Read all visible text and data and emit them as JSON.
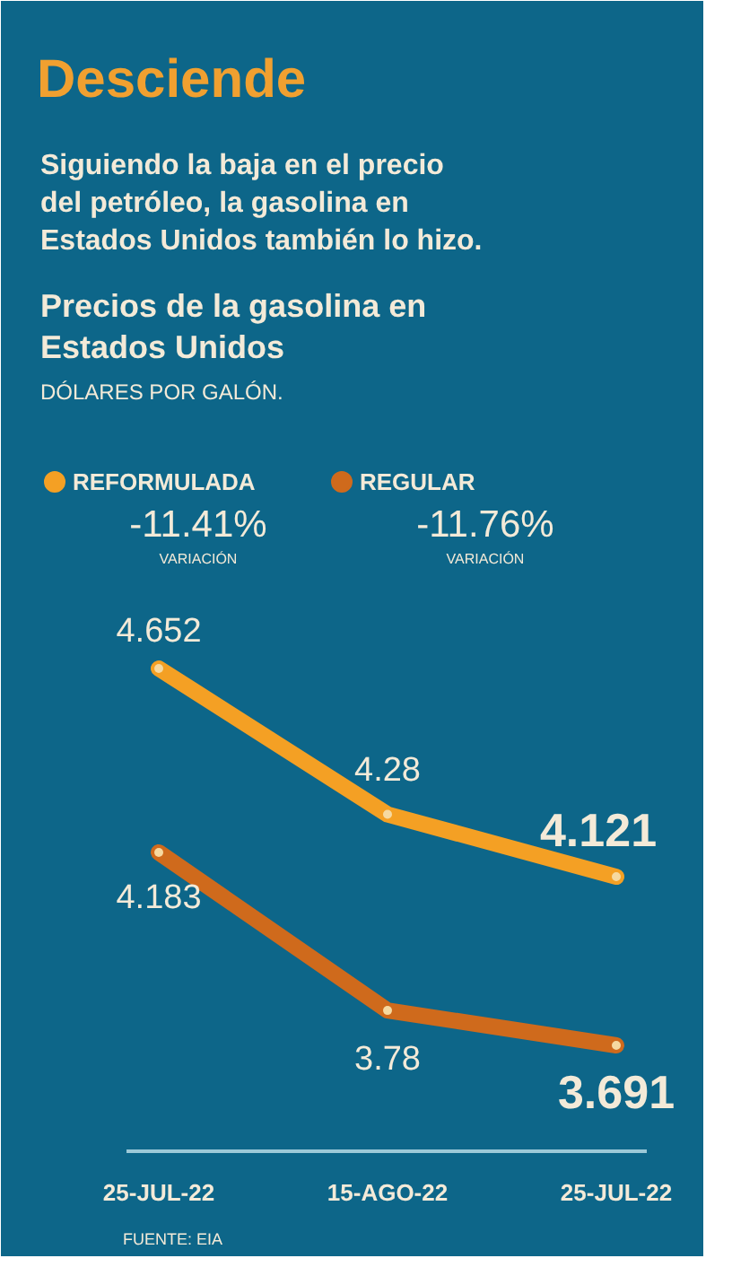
{
  "chart_data": {
    "type": "line",
    "title": "Desciende",
    "subtitle": "Siguiendo la baja en el precio del petróleo, la gasolina en Estados Unidos también lo hizo.",
    "categories": [
      "25-JUL-22",
      "15-AGO-22",
      "25-JUL-22"
    ],
    "series": [
      {
        "name": "REFORMULADA",
        "color": "#f4a024",
        "values": [
          4.652,
          4.28,
          4.121
        ]
      },
      {
        "name": "REGULAR",
        "color": "#cf6a1c",
        "values": [
          4.183,
          3.78,
          3.691
        ]
      }
    ],
    "data_labels": true,
    "legend": "top",
    "marker": "circle",
    "line_style": "solid",
    "annotations": [
      "Precios de la gasolina en Estados Unidos",
      "-11.41%",
      "VARIACIÓN",
      "-11.76%",
      "VARIACIÓN",
      "FUENTE: EIA",
      "DÓLARES POR GALÓN."
    ]
  }
}
